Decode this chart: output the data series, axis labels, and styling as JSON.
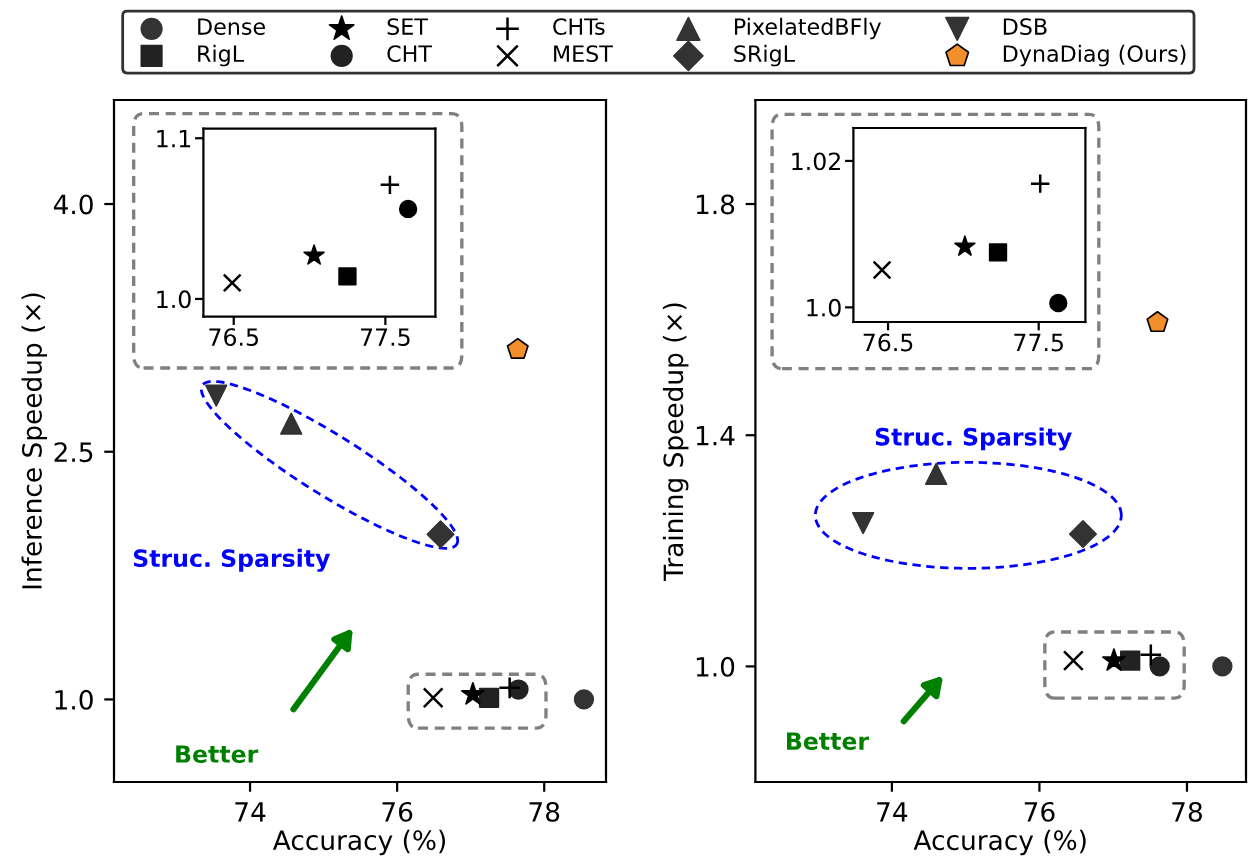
{
  "chart_data": [
    {
      "type": "scatter",
      "xlabel": "Accuracy (%)",
      "ylabel": "Inference Speedup (×)",
      "xlim": [
        72.15,
        78.84
      ],
      "ylim": [
        0.5,
        4.63
      ],
      "xticks": [
        74,
        76,
        78
      ],
      "yticks": [
        {
          "value": 4.0,
          "label": "4.0"
        },
        {
          "value": 2.5,
          "label": "2.5"
        },
        {
          "value": 1.0,
          "label": "1.0"
        }
      ],
      "grid": false,
      "legend": "top",
      "annotations": [
        "Struc. Sparsity",
        "Better"
      ],
      "series": [
        {
          "name": "Dense",
          "marker": "circle",
          "color": "#333333",
          "x": [
            78.54
          ],
          "values": [
            1.0
          ]
        },
        {
          "name": "RigL",
          "marker": "square",
          "color": "#222222",
          "x": [
            77.25
          ],
          "values": [
            1.01
          ]
        },
        {
          "name": "SET",
          "marker": "star",
          "color": "#000000",
          "x": [
            77.03
          ],
          "values": [
            1.03
          ]
        },
        {
          "name": "CHT",
          "marker": "circle",
          "color": "#222222",
          "x": [
            77.65
          ],
          "values": [
            1.06
          ]
        },
        {
          "name": "CHTs",
          "marker": "plus",
          "color": "#000000",
          "x": [
            77.53
          ],
          "values": [
            1.07
          ]
        },
        {
          "name": "MEST",
          "marker": "cross",
          "color": "#000000",
          "x": [
            76.49
          ],
          "values": [
            1.01
          ]
        },
        {
          "name": "PixelatedBFly",
          "marker": "triangle",
          "color": "#333333",
          "x": [
            74.56
          ],
          "values": [
            2.67
          ]
        },
        {
          "name": "SRigL",
          "marker": "diamond",
          "color": "#333333",
          "x": [
            76.59
          ],
          "values": [
            2.0
          ]
        },
        {
          "name": "DSB",
          "marker": "triangle_down",
          "color": "#333333",
          "x": [
            73.54
          ],
          "values": [
            2.84
          ]
        },
        {
          "name": "DynaDiag (Ours)",
          "color": "#f28e2b",
          "x": [
            77.64
          ],
          "values": [
            3.12
          ]
        }
      ]
    },
    {
      "type": "scatter",
      "xlim": [
        76.3,
        77.83
      ],
      "ylim": [
        0.989,
        1.106
      ],
      "xticks": [
        76.5,
        77.5
      ],
      "yticks": [
        {
          "value": 1.0,
          "label": "1.0"
        },
        {
          "value": 1.1,
          "label": "1.1"
        }
      ],
      "grid": false,
      "series": [
        {
          "marker": "square",
          "color": "#000000",
          "x": [
            77.25
          ],
          "values": [
            1.014
          ]
        },
        {
          "marker": "star",
          "color": "#000000",
          "x": [
            77.03
          ],
          "values": [
            1.027
          ]
        },
        {
          "marker": "circle",
          "color": "#000000",
          "x": [
            77.65
          ],
          "values": [
            1.056
          ]
        },
        {
          "marker": "plus",
          "color": "#000000",
          "x": [
            77.53
          ],
          "values": [
            1.071
          ]
        },
        {
          "marker": "cross",
          "color": "#000000",
          "x": [
            76.49
          ],
          "values": [
            1.01
          ]
        }
      ]
    },
    {
      "type": "scatter",
      "xlabel": "Accuracy (%)",
      "ylabel": "Training Speedup (×)",
      "xlim": [
        72.15,
        78.8
      ],
      "ylim": [
        0.8,
        1.98
      ],
      "xticks": [
        74,
        76,
        78
      ],
      "yticks": [
        {
          "value": 1.8,
          "label": "1.8"
        },
        {
          "value": 1.4,
          "label": "1.4"
        },
        {
          "value": 1.0,
          "label": "1.0"
        }
      ],
      "grid": false,
      "annotations": [
        "Struc. Sparsity",
        "Better"
      ],
      "series": [
        {
          "marker": "circle",
          "color": "#333333",
          "x": [
            78.48
          ],
          "values": [
            1.0
          ]
        },
        {
          "marker": "square",
          "color": "#222222",
          "x": [
            77.23
          ],
          "values": [
            1.01
          ]
        },
        {
          "marker": "star",
          "color": "#000000",
          "x": [
            77.01
          ],
          "values": [
            1.01
          ]
        },
        {
          "marker": "circle",
          "color": "#222222",
          "x": [
            77.63
          ],
          "values": [
            1.0
          ]
        },
        {
          "marker": "plus",
          "color": "#000000",
          "x": [
            77.51
          ],
          "values": [
            1.02
          ]
        },
        {
          "marker": "cross",
          "color": "#000000",
          "x": [
            76.46
          ],
          "values": [
            1.01
          ]
        },
        {
          "marker": "triangle",
          "color": "#333333",
          "x": [
            74.6
          ],
          "values": [
            1.333
          ]
        },
        {
          "marker": "diamond",
          "color": "#333333",
          "x": [
            76.59
          ],
          "values": [
            1.229
          ]
        },
        {
          "marker": "triangle_down",
          "color": "#333333",
          "x": [
            73.61
          ],
          "values": [
            1.248
          ]
        },
        {
          "color": "#f28e2b",
          "x": [
            77.6
          ],
          "values": [
            1.595
          ]
        }
      ]
    },
    {
      "type": "scatter",
      "xlim": [
        76.27,
        77.81
      ],
      "ylim": [
        0.998,
        1.0245
      ],
      "xticks": [
        76.5,
        77.5
      ],
      "yticks": [
        {
          "value": 1.0,
          "label": "1.0"
        },
        {
          "value": 1.02,
          "label": "1.02"
        }
      ],
      "grid": false,
      "series": [
        {
          "marker": "square",
          "color": "#000000",
          "x": [
            77.23
          ],
          "values": [
            1.0075
          ]
        },
        {
          "marker": "star",
          "color": "#000000",
          "x": [
            77.01
          ],
          "values": [
            1.0083
          ]
        },
        {
          "marker": "circle",
          "color": "#000000",
          "x": [
            77.63
          ],
          "values": [
            1.0006
          ]
        },
        {
          "marker": "plus",
          "color": "#000000",
          "x": [
            77.51
          ],
          "values": [
            1.0169
          ]
        },
        {
          "marker": "cross",
          "color": "#000000",
          "x": [
            76.46
          ],
          "values": [
            1.0051
          ]
        }
      ]
    }
  ]
}
